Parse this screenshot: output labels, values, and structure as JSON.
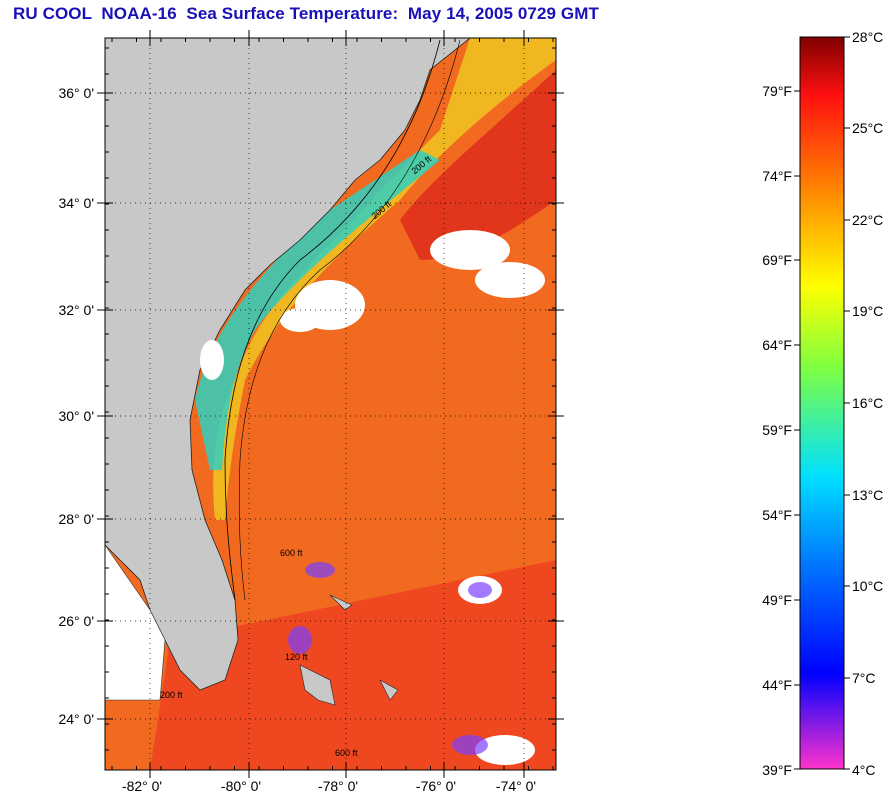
{
  "title": "RU COOL  NOAA-16  Sea Surface Temperature:  May 14, 2005 0729 GMT",
  "map": {
    "lat_labels": [
      "36° 0'",
      "34° 0'",
      "32° 0'",
      "30° 0'",
      "28° 0'",
      "26° 0'",
      "24° 0'"
    ],
    "lon_labels": [
      "-82° 0'",
      "-80° 0'",
      "-78° 0'",
      "-76° 0'",
      "-74° 0'"
    ],
    "contour_labels": [
      "200 ft",
      "200 ft",
      "200 ft",
      "600 ft",
      "600 ft",
      "120 ft"
    ],
    "colors": {
      "land": "#c8c8c8",
      "cloud": "#ffffff",
      "warm_water": "#f25a1a",
      "gulf_stream": "#e8331a",
      "shelf_water": "#f5d520"
    }
  },
  "colorbar": {
    "celsius_labels": [
      "28°C",
      "25°C",
      "22°C",
      "19°C",
      "16°C",
      "13°C",
      "10°C",
      "7°C",
      "4°C"
    ],
    "fahrenheit_labels": [
      "79°F",
      "74°F",
      "69°F",
      "64°F",
      "59°F",
      "54°F",
      "49°F",
      "44°F",
      "39°F"
    ],
    "gradient": [
      "#8b0000",
      "#ff0000",
      "#ff7f00",
      "#ffff00",
      "#00ff00",
      "#00ffff",
      "#0040ff",
      "#0000ff",
      "#ff00ff"
    ]
  }
}
